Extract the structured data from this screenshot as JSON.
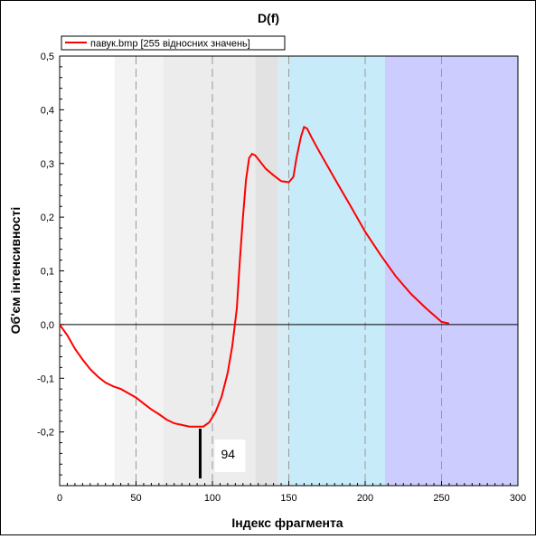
{
  "chart_data": {
    "type": "line",
    "title": "D(f)",
    "xlabel": "Індекс фрагмента",
    "ylabel": "Об'єм інтенсивності",
    "xlim": [
      0,
      300
    ],
    "ylim": [
      -0.3,
      0.5
    ],
    "x_ticks": [
      0,
      50,
      100,
      150,
      200,
      250,
      300
    ],
    "x_tick_labels": [
      "0",
      "50",
      "100",
      "150",
      "200",
      "250",
      "300"
    ],
    "y_ticks": [
      -0.2,
      -0.1,
      0.0,
      0.1,
      0.2,
      0.3,
      0.4,
      0.5
    ],
    "y_tick_labels": [
      "-0,2",
      "-0,1",
      "0,0",
      "0,1",
      "0,2",
      "0,3",
      "0,4",
      "0,5"
    ],
    "grid": "vertical dashed at x ticks",
    "legend": {
      "placement": "top-left",
      "entries": [
        "павук.bmp [255 відносних значень]"
      ]
    },
    "series": [
      {
        "name": "павук.bmp [255 відносних значень]",
        "color": "#ff0000",
        "x": [
          0,
          5,
          10,
          15,
          20,
          25,
          30,
          35,
          40,
          45,
          50,
          55,
          60,
          65,
          70,
          75,
          80,
          85,
          90,
          94,
          98,
          102,
          106,
          110,
          113,
          116,
          118,
          120,
          122,
          124,
          126,
          128,
          130,
          135,
          140,
          145,
          150,
          153,
          155,
          158,
          160,
          162,
          165,
          170,
          180,
          190,
          200,
          210,
          220,
          230,
          240,
          250,
          255
        ],
        "y": [
          0.0,
          -0.02,
          -0.045,
          -0.065,
          -0.083,
          -0.097,
          -0.108,
          -0.115,
          -0.12,
          -0.128,
          -0.136,
          -0.147,
          -0.158,
          -0.167,
          -0.177,
          -0.184,
          -0.187,
          -0.19,
          -0.19,
          -0.19,
          -0.182,
          -0.163,
          -0.135,
          -0.09,
          -0.04,
          0.03,
          0.12,
          0.2,
          0.27,
          0.31,
          0.318,
          0.315,
          0.308,
          0.29,
          0.278,
          0.267,
          0.265,
          0.275,
          0.31,
          0.35,
          0.368,
          0.365,
          0.348,
          0.322,
          0.272,
          0.223,
          0.173,
          0.13,
          0.09,
          0.057,
          0.03,
          0.005,
          0.002
        ]
      }
    ],
    "background_bands": [
      {
        "from": 36,
        "to": 68,
        "color": "#f3f3f3"
      },
      {
        "from": 68,
        "to": 128,
        "color": "#ececec"
      },
      {
        "from": 128,
        "to": 143,
        "color": "#e2e2e2"
      },
      {
        "from": 143,
        "to": 150,
        "color": "#d8ecf5"
      },
      {
        "from": 150,
        "to": 213,
        "color": "#c8ebfa"
      },
      {
        "from": 213,
        "to": 300,
        "color": "#ccccff"
      }
    ],
    "marker": {
      "x": 92,
      "label": "94"
    }
  }
}
